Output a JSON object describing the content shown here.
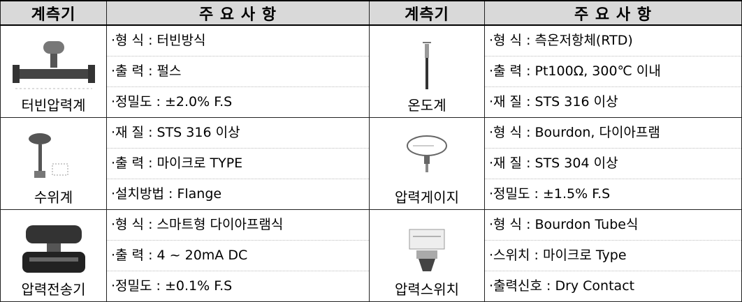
{
  "table": {
    "header": [
      "계측기",
      "주 요 사 항",
      "계측기",
      "주 요 사 항"
    ],
    "rows": [
      [
        {
          "name": "터빈압력계",
          "specs": [
            "·형 식 : 터빈방식",
            "·출 력 : 펄스",
            "·정밀도 : ±2.0% F.S"
          ]
        },
        {
          "name": "온도계",
          "specs": [
            "·형 식 : 측온저항체(RTD)",
            "·출 력 : Pt100Ω, 300℃ 이내",
            "·재 질 : STS 316 이상"
          ]
        }
      ],
      [
        {
          "name": "수위계",
          "specs": [
            "·재 질 : STS 316 이상",
            "·출 력 : 마이크로 TYPE",
            "·설치방법 : Flange"
          ]
        },
        {
          "name": "압력게이지",
          "specs": [
            "·형 식 : Bourdon, 다이아프램",
            "·재 질 : STS 304 이상",
            "·정밀도 : ±1.5% F.S"
          ]
        }
      ],
      [
        {
          "name": "압력전송기",
          "specs": [
            "·형 식 : 스마트형 다이아프램식",
            "·출 력 : 4 ~ 20mA DC",
            "·정밀도 : ±0.1% F.S"
          ]
        },
        {
          "name": "압력스위치",
          "specs": [
            "·형 식 : Bourdon Tube식",
            "·스위치 : 마이크로 Type",
            "·출력신호 : Dry Contact"
          ]
        }
      ]
    ]
  }
}
